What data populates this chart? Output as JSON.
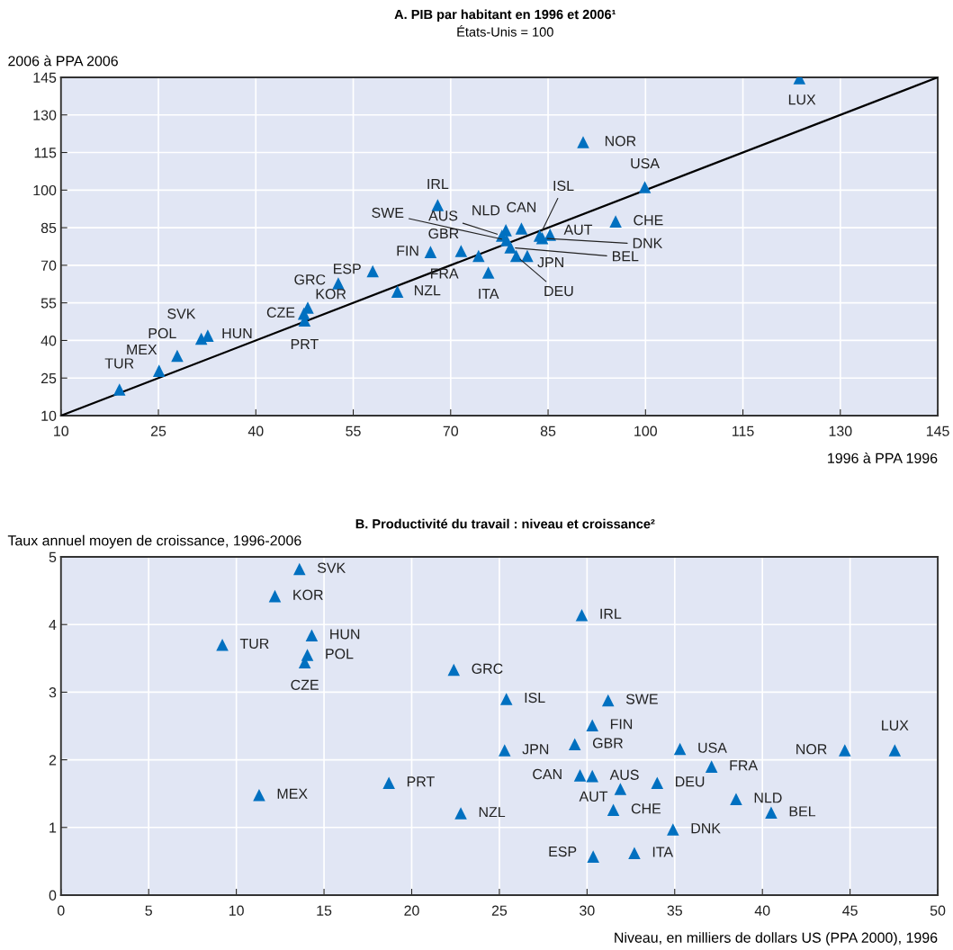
{
  "chart_data": [
    {
      "type": "scatter",
      "title": "A. PIB par habitant en 1996 et 2006¹",
      "subtitle": "États-Unis = 100",
      "xlabel": "1996 à PPA 1996",
      "ylabel": "2006 à PPA 2006",
      "series": [
        {
          "color": "#0070c0",
          "x": [
            123.7,
            90.4,
            99.9,
            95.4,
            68.0,
            80.9,
            78.5,
            77.9,
            83.7,
            85.3,
            84.1,
            78.6,
            79.2,
            71.6,
            66.9,
            74.3,
            80.1,
            81.8,
            75.8,
            58.0,
            52.7,
            61.8,
            48.0,
            47.4,
            47.5,
            31.6,
            32.6,
            27.9,
            25.1,
            19.0
          ],
          "values": [
            144.6,
            119.1,
            101.2,
            87.5,
            94.0,
            84.7,
            84.0,
            81.8,
            81.8,
            82.2,
            80.8,
            80.0,
            77.1,
            75.7,
            75.3,
            73.7,
            73.7,
            73.7,
            67.1,
            67.6,
            62.8,
            59.5,
            53.1,
            50.7,
            48.0,
            40.7,
            41.9,
            33.9,
            27.9,
            20.4
          ]
        },
        {
          "type": "line",
          "color": "#000000",
          "marker": "none",
          "x": [
            10,
            145
          ],
          "values": [
            10,
            145
          ]
        }
      ],
      "annotations": [
        {
          "text": "LUX",
          "x": 123.7,
          "y": 144.6
        },
        {
          "text": "NOR",
          "x": 90.4,
          "y": 119.1
        },
        {
          "text": "USA",
          "x": 99.9,
          "y": 101.2
        },
        {
          "text": "CHE",
          "x": 95.4,
          "y": 87.5
        },
        {
          "text": "IRL",
          "x": 68.0,
          "y": 94.0
        },
        {
          "text": "CAN",
          "x": 80.9,
          "y": 84.7
        },
        {
          "text": "NLD",
          "x": 78.5,
          "y": 84.0
        },
        {
          "text": "AUS",
          "x": 77.9,
          "y": 81.8
        },
        {
          "text": "ISL",
          "x": 83.7,
          "y": 81.8
        },
        {
          "text": "AUT",
          "x": 85.3,
          "y": 82.2
        },
        {
          "text": "DNK",
          "x": 84.1,
          "y": 80.8
        },
        {
          "text": "SWE",
          "x": 78.6,
          "y": 80.0
        },
        {
          "text": "BEL",
          "x": 79.2,
          "y": 77.1
        },
        {
          "text": "GBR",
          "x": 71.6,
          "y": 75.7
        },
        {
          "text": "FIN",
          "x": 66.9,
          "y": 75.3
        },
        {
          "text": "FRA",
          "x": 74.3,
          "y": 73.7
        },
        {
          "text": "DEU",
          "x": 80.1,
          "y": 73.7
        },
        {
          "text": "JPN",
          "x": 81.8,
          "y": 73.7
        },
        {
          "text": "ITA",
          "x": 75.8,
          "y": 67.1
        },
        {
          "text": "ESP",
          "x": 58.0,
          "y": 67.6
        },
        {
          "text": "GRC",
          "x": 52.7,
          "y": 62.8
        },
        {
          "text": "NZL",
          "x": 61.8,
          "y": 59.5
        },
        {
          "text": "KOR",
          "x": 48.0,
          "y": 53.1
        },
        {
          "text": "CZE",
          "x": 47.4,
          "y": 50.7
        },
        {
          "text": "PRT",
          "x": 47.5,
          "y": 48.0
        },
        {
          "text": "SVK",
          "x": 31.6,
          "y": 40.7
        },
        {
          "text": "HUN",
          "x": 32.6,
          "y": 41.9
        },
        {
          "text": "POL",
          "x": 27.9,
          "y": 33.9
        },
        {
          "text": "MEX",
          "x": 25.1,
          "y": 27.9
        },
        {
          "text": "TUR",
          "x": 19.0,
          "y": 20.4
        }
      ],
      "xlim": [
        10,
        145
      ],
      "ylim": [
        10,
        145
      ],
      "xticks": [
        10,
        25,
        40,
        55,
        70,
        85,
        100,
        115,
        130,
        145
      ],
      "yticks": [
        10,
        25,
        40,
        55,
        70,
        85,
        100,
        115,
        130,
        145
      ],
      "grid": true,
      "marker": "triangle"
    },
    {
      "type": "scatter",
      "title": "B. Productivité du travail : niveau et croissance²",
      "xlabel": "Niveau, en milliers de dollars US (PPA 2000), 1996",
      "ylabel": "Taux annuel moyen de croissance, 1996-2006",
      "series": [
        {
          "color": "#0070c0",
          "x": [
            13.6,
            12.2,
            14.3,
            9.2,
            14.05,
            13.9,
            22.4,
            11.3,
            18.7,
            22.8,
            29.7,
            25.4,
            31.2,
            30.3,
            29.3,
            25.3,
            35.3,
            44.7,
            47.55,
            37.1,
            29.6,
            30.3,
            34.0,
            31.9,
            38.5,
            31.5,
            40.5,
            34.9,
            32.7,
            30.35
          ],
          "values": [
            4.82,
            4.42,
            3.84,
            3.7,
            3.55,
            3.44,
            3.33,
            1.48,
            1.66,
            1.21,
            4.14,
            2.9,
            2.88,
            2.51,
            2.23,
            2.14,
            2.16,
            2.14,
            2.14,
            1.9,
            1.77,
            1.76,
            1.66,
            1.57,
            1.42,
            1.26,
            1.22,
            0.97,
            0.62,
            0.57
          ]
        }
      ],
      "annotations": [
        {
          "text": "SVK",
          "x": 13.6,
          "y": 4.82
        },
        {
          "text": "KOR",
          "x": 12.2,
          "y": 4.42
        },
        {
          "text": "HUN",
          "x": 14.3,
          "y": 3.84
        },
        {
          "text": "TUR",
          "x": 9.2,
          "y": 3.7
        },
        {
          "text": "POL",
          "x": 14.05,
          "y": 3.55
        },
        {
          "text": "CZE",
          "x": 13.9,
          "y": 3.44
        },
        {
          "text": "GRC",
          "x": 22.4,
          "y": 3.33
        },
        {
          "text": "MEX",
          "x": 11.3,
          "y": 1.48
        },
        {
          "text": "PRT",
          "x": 18.7,
          "y": 1.66
        },
        {
          "text": "NZL",
          "x": 22.8,
          "y": 1.21
        },
        {
          "text": "IRL",
          "x": 29.7,
          "y": 4.14
        },
        {
          "text": "ISL",
          "x": 25.4,
          "y": 2.9
        },
        {
          "text": "SWE",
          "x": 31.2,
          "y": 2.88
        },
        {
          "text": "FIN",
          "x": 30.3,
          "y": 2.51
        },
        {
          "text": "GBR",
          "x": 29.3,
          "y": 2.23
        },
        {
          "text": "JPN",
          "x": 25.3,
          "y": 2.14
        },
        {
          "text": "USA",
          "x": 35.3,
          "y": 2.16
        },
        {
          "text": "NOR",
          "x": 44.7,
          "y": 2.14
        },
        {
          "text": "LUX",
          "x": 47.55,
          "y": 2.14
        },
        {
          "text": "FRA",
          "x": 37.1,
          "y": 1.9
        },
        {
          "text": "CAN",
          "x": 29.6,
          "y": 1.77
        },
        {
          "text": "AUS",
          "x": 30.3,
          "y": 1.76
        },
        {
          "text": "DEU",
          "x": 34.0,
          "y": 1.66
        },
        {
          "text": "AUT",
          "x": 31.9,
          "y": 1.57
        },
        {
          "text": "NLD",
          "x": 38.5,
          "y": 1.42
        },
        {
          "text": "CHE",
          "x": 31.5,
          "y": 1.26
        },
        {
          "text": "BEL",
          "x": 40.5,
          "y": 1.22
        },
        {
          "text": "DNK",
          "x": 34.9,
          "y": 0.97
        },
        {
          "text": "ITA",
          "x": 32.7,
          "y": 0.62
        },
        {
          "text": "ESP",
          "x": 30.35,
          "y": 0.57
        }
      ],
      "xlim": [
        0,
        50
      ],
      "ylim": [
        0,
        5
      ],
      "xticks": [
        0,
        5,
        10,
        15,
        20,
        25,
        30,
        35,
        40,
        45,
        50
      ],
      "yticks": [
        0,
        1,
        2,
        3,
        4,
        5
      ],
      "grid": true,
      "marker": "triangle"
    }
  ]
}
